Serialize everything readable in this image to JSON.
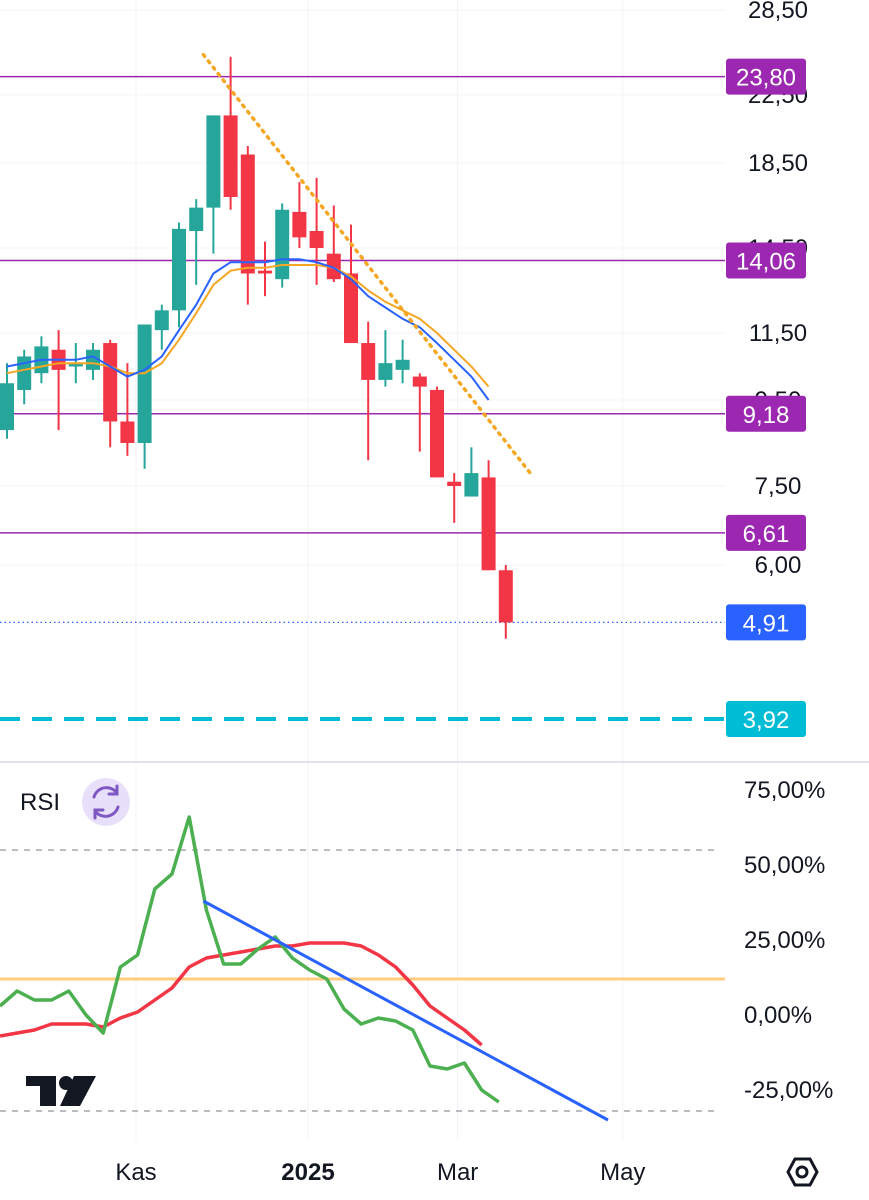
{
  "colors": {
    "up": "#26a69a",
    "down": "#f23645",
    "ema_fast": "#2962ff",
    "ema_slow": "#f5a623",
    "trendline": "#f5a623",
    "level_line": "#9c27b0",
    "level_badge": "#9c27b0",
    "last_price": "#2962ff",
    "target": "#00bcd4",
    "rsi_line": "#4caf50",
    "rsi_ma": "#f23645",
    "rsi_mid": "#ffcc80",
    "rsi_trend": "#2962ff",
    "rsi_badge_bg": "#e8e0fb",
    "rsi_badge_icon": "#7e57c2"
  },
  "chart_data": [
    {
      "type": "candlestick",
      "price_axis_labels": [
        "28,50",
        "22,50",
        "18,50",
        "14,50",
        "11,50",
        "9,50",
        "7,50",
        "6,00"
      ],
      "price_axis_values": [
        28.5,
        22.5,
        18.5,
        14.5,
        11.5,
        9.5,
        7.5,
        6.0
      ],
      "candles": [
        {
          "o": 8.8,
          "h": 10.6,
          "l": 8.6,
          "c": 10.0
        },
        {
          "o": 9.8,
          "h": 11.0,
          "l": 9.4,
          "c": 10.8
        },
        {
          "o": 10.3,
          "h": 11.4,
          "l": 10.0,
          "c": 11.1
        },
        {
          "o": 11.0,
          "h": 11.6,
          "l": 8.8,
          "c": 10.4
        },
        {
          "o": 10.5,
          "h": 11.2,
          "l": 10.0,
          "c": 10.6
        },
        {
          "o": 10.4,
          "h": 11.2,
          "l": 10.1,
          "c": 11.0
        },
        {
          "o": 11.2,
          "h": 11.3,
          "l": 8.4,
          "c": 9.0
        },
        {
          "o": 9.0,
          "h": 10.6,
          "l": 8.2,
          "c": 8.5
        },
        {
          "o": 8.5,
          "h": 11.8,
          "l": 7.9,
          "c": 11.8
        },
        {
          "o": 11.6,
          "h": 12.5,
          "l": 11.0,
          "c": 12.3
        },
        {
          "o": 12.3,
          "h": 15.7,
          "l": 11.7,
          "c": 15.4
        },
        {
          "o": 15.3,
          "h": 16.8,
          "l": 13.2,
          "c": 16.4
        },
        {
          "o": 16.4,
          "h": 21.3,
          "l": 14.3,
          "c": 21.3
        },
        {
          "o": 21.3,
          "h": 25.2,
          "l": 16.3,
          "c": 16.9
        },
        {
          "o": 19.0,
          "h": 19.5,
          "l": 12.5,
          "c": 13.6
        },
        {
          "o": 13.7,
          "h": 14.8,
          "l": 12.8,
          "c": 13.6
        },
        {
          "o": 13.4,
          "h": 16.6,
          "l": 13.1,
          "c": 16.3
        },
        {
          "o": 16.2,
          "h": 17.6,
          "l": 14.5,
          "c": 15.0
        },
        {
          "o": 15.3,
          "h": 17.8,
          "l": 13.2,
          "c": 14.5
        },
        {
          "o": 14.3,
          "h": 16.5,
          "l": 13.3,
          "c": 13.4
        },
        {
          "o": 13.6,
          "h": 15.6,
          "l": 11.2,
          "c": 11.2
        },
        {
          "o": 11.2,
          "h": 11.9,
          "l": 8.1,
          "c": 10.1
        },
        {
          "o": 10.1,
          "h": 11.6,
          "l": 9.9,
          "c": 10.6
        },
        {
          "o": 10.4,
          "h": 11.3,
          "l": 10.0,
          "c": 10.7
        },
        {
          "o": 10.2,
          "h": 10.3,
          "l": 8.3,
          "c": 9.9
        },
        {
          "o": 9.8,
          "h": 9.9,
          "l": 7.7,
          "c": 7.7
        },
        {
          "o": 7.6,
          "h": 7.8,
          "l": 6.8,
          "c": 7.5
        },
        {
          "o": 7.3,
          "h": 8.4,
          "l": 7.3,
          "c": 7.8
        },
        {
          "o": 7.7,
          "h": 8.1,
          "l": 5.9,
          "c": 5.9
        },
        {
          "o": 5.9,
          "h": 6.0,
          "l": 4.6,
          "c": 4.91
        }
      ],
      "ema_fast": [
        10.5,
        10.6,
        10.7,
        10.7,
        10.7,
        10.8,
        10.5,
        10.2,
        10.4,
        10.8,
        11.6,
        12.5,
        13.6,
        14.0,
        14.0,
        14.0,
        14.1,
        14.1,
        14.0,
        13.8,
        13.4,
        12.8,
        12.4,
        12.0,
        11.7,
        11.2,
        10.7,
        10.2,
        9.5
      ],
      "ema_slow": [
        10.3,
        10.4,
        10.5,
        10.6,
        10.6,
        10.6,
        10.5,
        10.3,
        10.3,
        10.6,
        11.3,
        12.2,
        13.2,
        13.7,
        13.8,
        13.8,
        13.9,
        13.9,
        13.9,
        13.8,
        13.5,
        13.0,
        12.6,
        12.3,
        12.0,
        11.5,
        11.0,
        10.5,
        9.9
      ],
      "levels": [
        {
          "value": 23.8,
          "label": "23,80"
        },
        {
          "value": 14.06,
          "label": "14,06"
        },
        {
          "value": 9.18,
          "label": "9,18"
        },
        {
          "value": 6.61,
          "label": "6,61"
        }
      ],
      "last_price": {
        "value": 4.91,
        "label": "4,91"
      },
      "target": {
        "value": 3.92,
        "label": "3,92"
      },
      "trendline": {
        "from": {
          "bar": 12,
          "price": 25.2
        },
        "to": {
          "bar": 31,
          "price": 7.8
        }
      }
    },
    {
      "type": "line",
      "title": "RSI",
      "axis_labels": [
        "75,00%",
        "50,00%",
        "25,00%",
        "0,00%",
        "-25,00%"
      ],
      "axis_values": [
        75,
        50,
        25,
        0,
        -25
      ],
      "bands": [
        55,
        -32
      ],
      "midline": 12,
      "rsi": [
        3,
        8,
        5,
        5,
        8,
        0,
        -6,
        16,
        20,
        42,
        47,
        66,
        35,
        17,
        17,
        22,
        26,
        19,
        15,
        12,
        2,
        -3,
        -1,
        -2,
        -5,
        -17,
        -18,
        -16,
        -25,
        -29
      ],
      "rsi_ma": [
        -7,
        -6,
        -5,
        -3,
        -3,
        -3,
        -4,
        -1,
        1,
        5,
        9,
        16,
        19,
        20,
        21,
        22,
        23,
        23,
        24,
        24,
        24,
        23,
        20,
        16,
        10,
        3,
        -1,
        -5,
        -10
      ],
      "trendline": {
        "from": {
          "bar": 12,
          "value": 38
        },
        "to": {
          "bar": 35,
          "value": -35
        }
      },
      "time_axis": [
        {
          "label": "Kas",
          "bar": 7.5,
          "bold": false
        },
        {
          "label": "2025",
          "bar": 17.5,
          "bold": true
        },
        {
          "label": "Mar",
          "bar": 26.2,
          "bold": false
        },
        {
          "label": "May",
          "bar": 35.8,
          "bold": false
        }
      ]
    }
  ],
  "ui": {
    "settings_icon": "settings-hexagon-icon",
    "logo": "tradingview-logo",
    "rsi_badge_icon": "refresh-cycle-icon"
  }
}
